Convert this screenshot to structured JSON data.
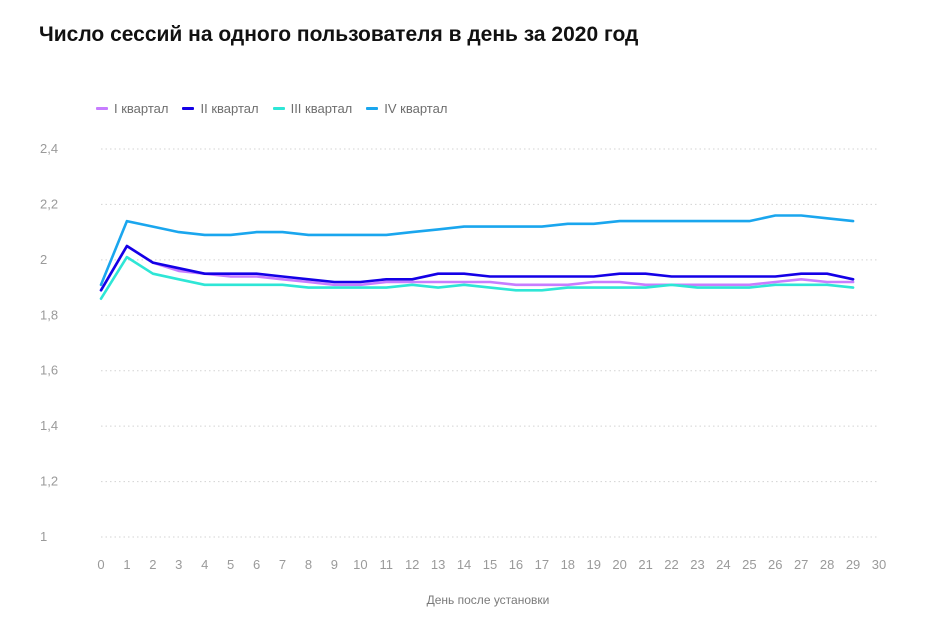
{
  "chart_data": {
    "type": "line",
    "title": "Число сессий на одного пользователя в день за 2020 год",
    "xlabel": "День после установки",
    "ylabel": "",
    "x": [
      0,
      1,
      2,
      3,
      4,
      5,
      6,
      7,
      8,
      9,
      10,
      11,
      12,
      13,
      14,
      15,
      16,
      17,
      18,
      19,
      20,
      21,
      22,
      23,
      24,
      25,
      26,
      27,
      28,
      29
    ],
    "x_ticks": [
      "0",
      "1",
      "2",
      "3",
      "4",
      "5",
      "6",
      "7",
      "8",
      "9",
      "10",
      "11",
      "12",
      "13",
      "14",
      "15",
      "16",
      "17",
      "18",
      "19",
      "20",
      "21",
      "22",
      "23",
      "24",
      "25",
      "26",
      "27",
      "28",
      "29",
      "30"
    ],
    "xlim": [
      0,
      30
    ],
    "y_ticks": [
      "1",
      "1,2",
      "1,4",
      "1,6",
      "1,8",
      "2",
      "2,2",
      "2,4"
    ],
    "ylim": [
      1,
      2.4
    ],
    "grid": "horizontal-dotted",
    "legend": "top-left",
    "series": [
      {
        "name": "I квартал",
        "color": "#c77dff",
        "values": [
          1.89,
          2.05,
          1.99,
          1.96,
          1.95,
          1.94,
          1.94,
          1.93,
          1.92,
          1.91,
          1.91,
          1.92,
          1.92,
          1.92,
          1.92,
          1.92,
          1.91,
          1.91,
          1.91,
          1.92,
          1.92,
          1.91,
          1.91,
          1.91,
          1.91,
          1.91,
          1.92,
          1.93,
          1.92,
          1.92
        ]
      },
      {
        "name": "II квартал",
        "color": "#1400e6",
        "values": [
          1.89,
          2.05,
          1.99,
          1.97,
          1.95,
          1.95,
          1.95,
          1.94,
          1.93,
          1.92,
          1.92,
          1.93,
          1.93,
          1.95,
          1.95,
          1.94,
          1.94,
          1.94,
          1.94,
          1.94,
          1.95,
          1.95,
          1.94,
          1.94,
          1.94,
          1.94,
          1.94,
          1.95,
          1.95,
          1.93
        ]
      },
      {
        "name": "III квартал",
        "color": "#2ee6d6",
        "values": [
          1.86,
          2.01,
          1.95,
          1.93,
          1.91,
          1.91,
          1.91,
          1.91,
          1.9,
          1.9,
          1.9,
          1.9,
          1.91,
          1.9,
          1.91,
          1.9,
          1.89,
          1.89,
          1.9,
          1.9,
          1.9,
          1.9,
          1.91,
          1.9,
          1.9,
          1.9,
          1.91,
          1.91,
          1.91,
          1.9
        ]
      },
      {
        "name": "IV квартал",
        "color": "#1aa6ee",
        "values": [
          1.91,
          2.14,
          2.12,
          2.1,
          2.09,
          2.09,
          2.1,
          2.1,
          2.09,
          2.09,
          2.09,
          2.09,
          2.1,
          2.11,
          2.12,
          2.12,
          2.12,
          2.12,
          2.13,
          2.13,
          2.14,
          2.14,
          2.14,
          2.14,
          2.14,
          2.14,
          2.16,
          2.16,
          2.15,
          2.14
        ]
      }
    ]
  }
}
